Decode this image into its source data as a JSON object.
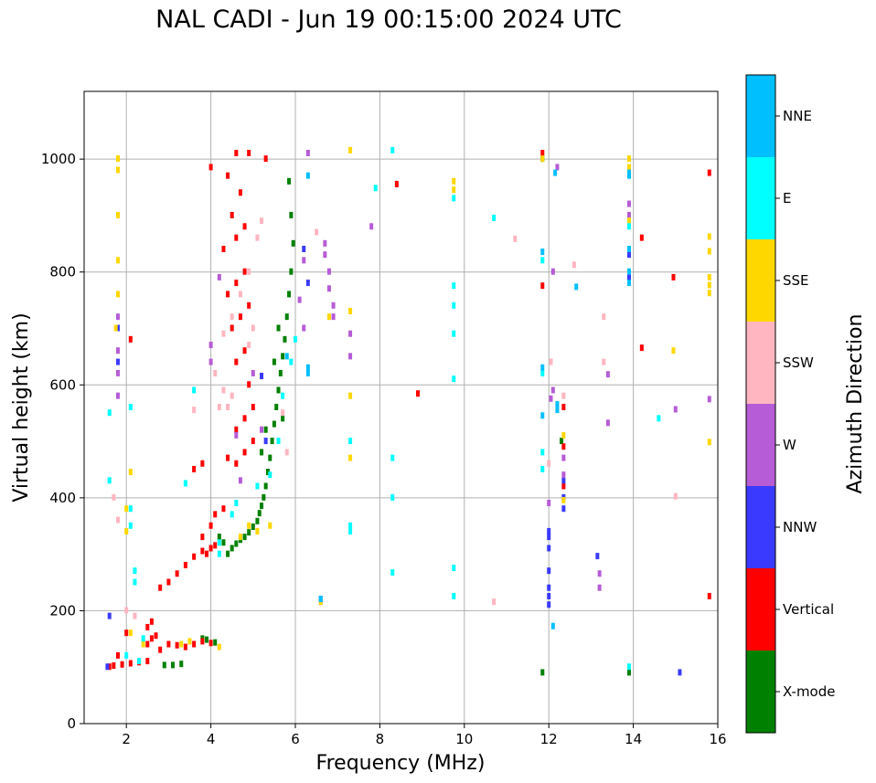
{
  "chart_data": {
    "type": "scatter",
    "title": "NAL CADI - Jun 19 00:15:00 2024 UTC",
    "xlabel": "Frequency (MHz)",
    "ylabel": "Virtual height (km)",
    "colorbar_label": "Azimuth Direction",
    "xlim": [
      1,
      16
    ],
    "ylim": [
      0,
      1120
    ],
    "xticks": [
      2,
      4,
      6,
      8,
      10,
      12,
      14,
      16
    ],
    "yticks": [
      0,
      200,
      400,
      600,
      800,
      1000
    ],
    "grid": true,
    "categories": [
      {
        "name": "X-mode",
        "color": "#008000"
      },
      {
        "name": "Vertical",
        "color": "#ff0000"
      },
      {
        "name": "NNW",
        "color": "#3a3aff"
      },
      {
        "name": "W",
        "color": "#b65cd6"
      },
      {
        "name": "SSW",
        "color": "#ffb6c1"
      },
      {
        "name": "SSE",
        "color": "#ffd700"
      },
      {
        "name": "E",
        "color": "#00ffff"
      },
      {
        "name": "NNE",
        "color": "#00bfff"
      }
    ],
    "series": [
      {
        "name": "X-mode",
        "points": [
          [
            2.9,
            103
          ],
          [
            3.1,
            103
          ],
          [
            3.3,
            105
          ],
          [
            3.8,
            150
          ],
          [
            3.9,
            148
          ],
          [
            4.1,
            143
          ],
          [
            4.4,
            300
          ],
          [
            4.5,
            310
          ],
          [
            4.6,
            318
          ],
          [
            4.7,
            325
          ],
          [
            4.8,
            330
          ],
          [
            4.9,
            338
          ],
          [
            5.0,
            348
          ],
          [
            5.1,
            358
          ],
          [
            5.15,
            372
          ],
          [
            5.2,
            385
          ],
          [
            5.25,
            400
          ],
          [
            5.3,
            420
          ],
          [
            5.35,
            445
          ],
          [
            5.4,
            470
          ],
          [
            5.45,
            500
          ],
          [
            5.5,
            530
          ],
          [
            5.55,
            560
          ],
          [
            5.6,
            590
          ],
          [
            5.65,
            620
          ],
          [
            5.7,
            650
          ],
          [
            5.75,
            680
          ],
          [
            5.8,
            720
          ],
          [
            5.85,
            760
          ],
          [
            5.9,
            800
          ],
          [
            5.95,
            850
          ],
          [
            5.9,
            900
          ],
          [
            5.85,
            960
          ],
          [
            5.5,
            640
          ],
          [
            5.6,
            700
          ],
          [
            5.7,
            540
          ],
          [
            5.3,
            520
          ],
          [
            5.2,
            480
          ],
          [
            11.85,
            90
          ],
          [
            11.85,
            1000
          ],
          [
            13.9,
            90
          ],
          [
            13.9,
            980
          ],
          [
            12.3,
            500
          ],
          [
            4.2,
            330
          ],
          [
            4.3,
            320
          ]
        ]
      },
      {
        "name": "Vertical",
        "points": [
          [
            1.6,
            100
          ],
          [
            1.7,
            102
          ],
          [
            1.9,
            104
          ],
          [
            2.1,
            106
          ],
          [
            2.3,
            108
          ],
          [
            2.5,
            110
          ],
          [
            2.5,
            140
          ],
          [
            2.6,
            150
          ],
          [
            2.7,
            155
          ],
          [
            2.8,
            130
          ],
          [
            3.0,
            140
          ],
          [
            3.2,
            138
          ],
          [
            3.4,
            135
          ],
          [
            3.6,
            140
          ],
          [
            3.8,
            145
          ],
          [
            4.0,
            142
          ],
          [
            2.5,
            170
          ],
          [
            2.6,
            180
          ],
          [
            2.8,
            240
          ],
          [
            3.0,
            250
          ],
          [
            3.2,
            265
          ],
          [
            3.4,
            280
          ],
          [
            3.6,
            295
          ],
          [
            3.8,
            305
          ],
          [
            3.9,
            300
          ],
          [
            4.0,
            310
          ],
          [
            4.1,
            315
          ],
          [
            4.0,
            350
          ],
          [
            3.8,
            330
          ],
          [
            4.1,
            370
          ],
          [
            4.3,
            380
          ],
          [
            3.6,
            450
          ],
          [
            3.8,
            460
          ],
          [
            4.4,
            470
          ],
          [
            4.6,
            460
          ],
          [
            4.8,
            480
          ],
          [
            5.0,
            500
          ],
          [
            4.6,
            520
          ],
          [
            4.8,
            540
          ],
          [
            5.0,
            560
          ],
          [
            4.9,
            600
          ],
          [
            4.6,
            640
          ],
          [
            4.8,
            660
          ],
          [
            4.5,
            700
          ],
          [
            4.7,
            720
          ],
          [
            4.9,
            740
          ],
          [
            4.4,
            760
          ],
          [
            4.6,
            780
          ],
          [
            4.8,
            800
          ],
          [
            4.3,
            840
          ],
          [
            4.6,
            860
          ],
          [
            4.8,
            880
          ],
          [
            4.5,
            900
          ],
          [
            4.7,
            940
          ],
          [
            4.4,
            970
          ],
          [
            4.6,
            1010
          ],
          [
            4.9,
            1010
          ],
          [
            4.0,
            985
          ],
          [
            5.3,
            1000
          ],
          [
            8.4,
            955
          ],
          [
            8.9,
            584
          ],
          [
            11.85,
            1010
          ],
          [
            11.85,
            775
          ],
          [
            12.35,
            560
          ],
          [
            12.35,
            490
          ],
          [
            12.35,
            420
          ],
          [
            14.2,
            860
          ],
          [
            14.2,
            665
          ],
          [
            14.95,
            790
          ],
          [
            15.8,
            975
          ],
          [
            15.8,
            225
          ],
          [
            2.1,
            680
          ],
          [
            2.0,
            160
          ],
          [
            1.8,
            120
          ]
        ]
      },
      {
        "name": "NNW",
        "points": [
          [
            1.55,
            100
          ],
          [
            1.6,
            190
          ],
          [
            1.8,
            640
          ],
          [
            1.8,
            700
          ],
          [
            5.2,
            615
          ],
          [
            5.3,
            500
          ],
          [
            6.2,
            840
          ],
          [
            6.3,
            780
          ],
          [
            12.0,
            310
          ],
          [
            12.0,
            340
          ],
          [
            12.0,
            330
          ],
          [
            12.0,
            210
          ],
          [
            12.0,
            225
          ],
          [
            12.0,
            240
          ],
          [
            12.0,
            270
          ],
          [
            12.35,
            400
          ],
          [
            12.35,
            430
          ],
          [
            12.35,
            380
          ],
          [
            13.15,
            296
          ],
          [
            15.1,
            90
          ],
          [
            13.9,
            830
          ],
          [
            13.9,
            790
          ],
          [
            6.6,
            220
          ]
        ]
      },
      {
        "name": "W",
        "points": [
          [
            1.8,
            580
          ],
          [
            1.8,
            620
          ],
          [
            1.8,
            660
          ],
          [
            1.8,
            720
          ],
          [
            4.0,
            640
          ],
          [
            4.0,
            670
          ],
          [
            4.2,
            790
          ],
          [
            4.6,
            510
          ],
          [
            4.7,
            430
          ],
          [
            5.0,
            620
          ],
          [
            5.2,
            520
          ],
          [
            6.1,
            750
          ],
          [
            6.2,
            700
          ],
          [
            6.3,
            1010
          ],
          [
            6.2,
            820
          ],
          [
            6.7,
            850
          ],
          [
            6.7,
            830
          ],
          [
            6.8,
            800
          ],
          [
            6.8,
            770
          ],
          [
            6.9,
            740
          ],
          [
            6.9,
            720
          ],
          [
            7.3,
            690
          ],
          [
            7.3,
            650
          ],
          [
            12.0,
            390
          ],
          [
            12.1,
            800
          ],
          [
            12.2,
            985
          ],
          [
            12.05,
            575
          ],
          [
            12.1,
            590
          ],
          [
            12.35,
            440
          ],
          [
            12.35,
            470
          ],
          [
            13.2,
            240
          ],
          [
            13.2,
            265
          ],
          [
            13.4,
            532
          ],
          [
            13.4,
            618
          ],
          [
            13.9,
            920
          ],
          [
            13.9,
            900
          ],
          [
            15.0,
            556
          ],
          [
            15.8,
            574
          ],
          [
            6.6,
            215
          ],
          [
            7.8,
            880
          ]
        ]
      },
      {
        "name": "SSW",
        "points": [
          [
            1.7,
            400
          ],
          [
            1.8,
            360
          ],
          [
            2.0,
            200
          ],
          [
            2.2,
            190
          ],
          [
            3.6,
            555
          ],
          [
            4.1,
            620
          ],
          [
            4.3,
            690
          ],
          [
            4.5,
            720
          ],
          [
            4.7,
            760
          ],
          [
            4.9,
            800
          ],
          [
            5.1,
            860
          ],
          [
            5.2,
            890
          ],
          [
            4.2,
            560
          ],
          [
            4.4,
            560
          ],
          [
            4.5,
            580
          ],
          [
            4.3,
            590
          ],
          [
            4.9,
            670
          ],
          [
            5.0,
            700
          ],
          [
            5.8,
            480
          ],
          [
            5.7,
            550
          ],
          [
            6.5,
            870
          ],
          [
            12.0,
            460
          ],
          [
            12.05,
            640
          ],
          [
            12.6,
            812
          ],
          [
            13.3,
            640
          ],
          [
            13.3,
            720
          ],
          [
            15.0,
            402
          ],
          [
            10.7,
            215
          ],
          [
            11.2,
            858
          ],
          [
            12.35,
            580
          ]
        ]
      },
      {
        "name": "SSE",
        "points": [
          [
            1.75,
            700
          ],
          [
            1.8,
            760
          ],
          [
            1.8,
            820
          ],
          [
            1.8,
            900
          ],
          [
            1.8,
            980
          ],
          [
            1.8,
            1000
          ],
          [
            2.0,
            340
          ],
          [
            2.0,
            380
          ],
          [
            2.1,
            445
          ],
          [
            2.1,
            160
          ],
          [
            2.4,
            140
          ],
          [
            3.3,
            140
          ],
          [
            3.5,
            145
          ],
          [
            4.2,
            135
          ],
          [
            4.7,
            330
          ],
          [
            4.9,
            350
          ],
          [
            5.1,
            340
          ],
          [
            5.4,
            350
          ],
          [
            6.8,
            720
          ],
          [
            7.3,
            730
          ],
          [
            7.3,
            1015
          ],
          [
            7.3,
            580
          ],
          [
            7.3,
            470
          ],
          [
            9.75,
            960
          ],
          [
            9.75,
            945
          ],
          [
            11.85,
            1000
          ],
          [
            13.9,
            1000
          ],
          [
            13.9,
            985
          ],
          [
            13.9,
            890
          ],
          [
            14.95,
            660
          ],
          [
            15.8,
            862
          ],
          [
            15.8,
            836
          ],
          [
            15.8,
            790
          ],
          [
            15.8,
            776
          ],
          [
            15.8,
            762
          ],
          [
            15.8,
            498
          ],
          [
            12.35,
            510
          ],
          [
            12.35,
            395
          ],
          [
            6.6,
            215
          ]
        ]
      },
      {
        "name": "E",
        "points": [
          [
            1.6,
            550
          ],
          [
            1.6,
            430
          ],
          [
            2.1,
            560
          ],
          [
            2.1,
            380
          ],
          [
            2.1,
            350
          ],
          [
            2.2,
            270
          ],
          [
            2.2,
            250
          ],
          [
            2.3,
            110
          ],
          [
            2.4,
            150
          ],
          [
            2.0,
            120
          ],
          [
            3.4,
            425
          ],
          [
            3.6,
            590
          ],
          [
            4.2,
            320
          ],
          [
            4.2,
            300
          ],
          [
            4.5,
            370
          ],
          [
            4.6,
            390
          ],
          [
            5.1,
            420
          ],
          [
            5.4,
            440
          ],
          [
            5.6,
            500
          ],
          [
            5.7,
            580
          ],
          [
            5.9,
            640
          ],
          [
            6.0,
            680
          ],
          [
            7.3,
            500
          ],
          [
            7.3,
            340
          ],
          [
            7.3,
            350
          ],
          [
            7.9,
            948
          ],
          [
            8.3,
            1015
          ],
          [
            8.3,
            470
          ],
          [
            8.3,
            400
          ],
          [
            8.3,
            267
          ],
          [
            9.75,
            930
          ],
          [
            9.75,
            775
          ],
          [
            9.75,
            740
          ],
          [
            9.75,
            690
          ],
          [
            9.75,
            610
          ],
          [
            9.75,
            275
          ],
          [
            9.75,
            225
          ],
          [
            10.7,
            895
          ],
          [
            11.85,
            450
          ],
          [
            11.85,
            480
          ],
          [
            11.85,
            620
          ],
          [
            11.85,
            820
          ],
          [
            13.9,
            880
          ],
          [
            13.9,
            100
          ],
          [
            14.6,
            540
          ]
        ]
      },
      {
        "name": "NNE",
        "points": [
          [
            6.3,
            620
          ],
          [
            6.3,
            630
          ],
          [
            6.3,
            970
          ],
          [
            6.6,
            220
          ],
          [
            11.85,
            835
          ],
          [
            11.85,
            630
          ],
          [
            11.85,
            545
          ],
          [
            12.1,
            172
          ],
          [
            12.15,
            975
          ],
          [
            12.2,
            565
          ],
          [
            12.2,
            555
          ],
          [
            12.65,
            773
          ],
          [
            13.9,
            975
          ],
          [
            13.9,
            840
          ],
          [
            13.9,
            800
          ],
          [
            13.9,
            780
          ],
          [
            13.9,
            970
          ],
          [
            5.8,
            650
          ]
        ]
      }
    ]
  }
}
